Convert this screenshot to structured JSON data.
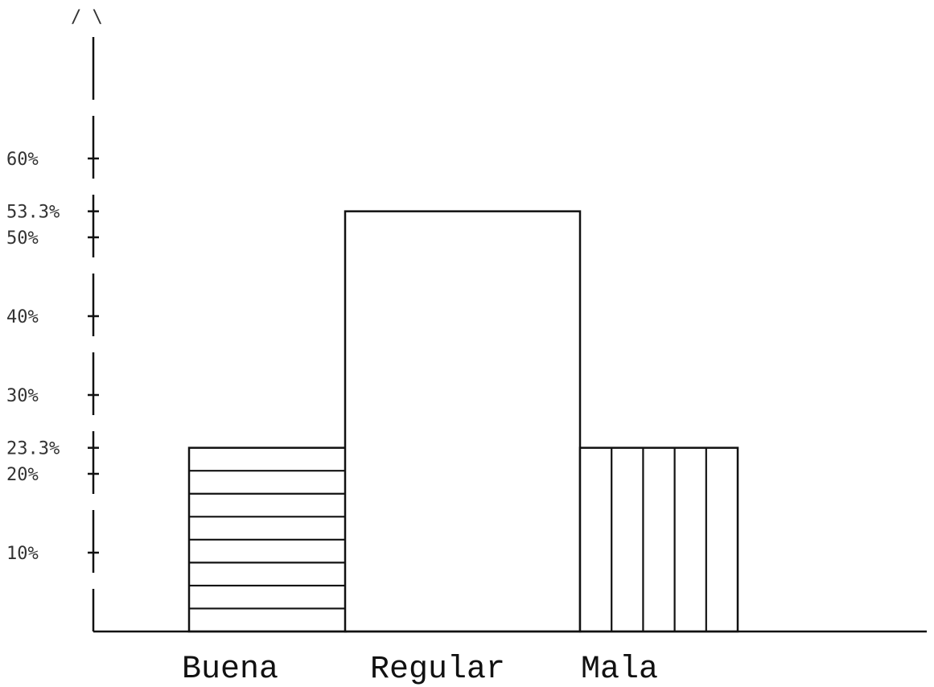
{
  "chart_data": {
    "type": "bar",
    "title": "",
    "xlabel": "",
    "ylabel": "",
    "ylim": [
      0,
      64
    ],
    "grid": false,
    "categories": [
      "Buena",
      "Regular",
      "Mala"
    ],
    "values": [
      23.3,
      53.3,
      23.3
    ],
    "patterns": [
      "horizontal-lines",
      "none",
      "vertical-lines"
    ],
    "y_ticks": [
      {
        "value": 10,
        "label": "10%"
      },
      {
        "value": 20,
        "label": "20%"
      },
      {
        "value": 23.3,
        "label": "23.3%"
      },
      {
        "value": 30,
        "label": "30%"
      },
      {
        "value": 40,
        "label": "40%"
      },
      {
        "value": 50,
        "label": "50%"
      },
      {
        "value": 53.3,
        "label": "53.3%"
      },
      {
        "value": 60,
        "label": "60%"
      }
    ],
    "axis_arrow": "/ \\"
  }
}
